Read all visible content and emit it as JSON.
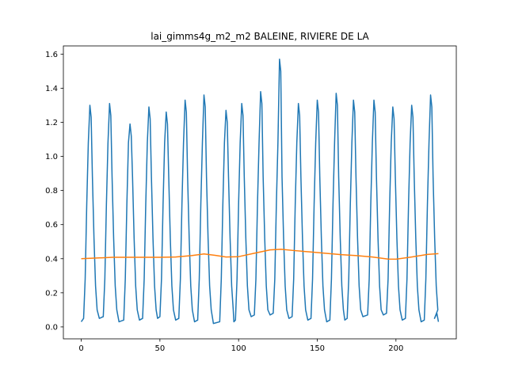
{
  "chart_data": {
    "type": "line",
    "title": "lai_gimms4g_m2_m2 BALEINE, RIVIERE DE LA",
    "xlabel": "",
    "ylabel": "",
    "xlim": [
      -11.35,
      238.35
    ],
    "ylim": [
      -0.07,
      1.648
    ],
    "xticks": [
      0,
      50,
      100,
      150,
      200
    ],
    "xtick_labels": [
      "0",
      "50",
      "100",
      "150",
      "200"
    ],
    "yticks": [
      0.0,
      0.2,
      0.4,
      0.6,
      0.8,
      1.0,
      1.2,
      1.4,
      1.6
    ],
    "ytick_labels": [
      "0.0",
      "0.2",
      "0.4",
      "0.6",
      "0.8",
      "1.0",
      "1.2",
      "1.4",
      "1.6"
    ],
    "grid": false,
    "legend": "none",
    "series": [
      {
        "color": "#1f77b4",
        "peaks": [
          {
            "x": 5.5,
            "y": 1.3
          },
          {
            "x": 18,
            "y": 1.31
          },
          {
            "x": 31,
            "y": 1.19
          },
          {
            "x": 43,
            "y": 1.29
          },
          {
            "x": 54,
            "y": 1.26
          },
          {
            "x": 66,
            "y": 1.33
          },
          {
            "x": 78,
            "y": 1.36
          },
          {
            "x": 92,
            "y": 1.27
          },
          {
            "x": 102,
            "y": 1.31
          },
          {
            "x": 114,
            "y": 1.38
          },
          {
            "x": 126,
            "y": 1.57
          },
          {
            "x": 138,
            "y": 1.31
          },
          {
            "x": 150,
            "y": 1.33
          },
          {
            "x": 162,
            "y": 1.37
          },
          {
            "x": 173,
            "y": 1.33
          },
          {
            "x": 186,
            "y": 1.33
          },
          {
            "x": 198,
            "y": 1.29
          },
          {
            "x": 210,
            "y": 1.3
          },
          {
            "x": 222,
            "y": 1.36
          }
        ],
        "baseline": [
          0.03,
          0.04,
          0.02,
          0.03,
          0.04,
          0.03,
          0.02,
          0.01,
          0.02,
          0.05,
          0.06,
          0.04,
          0.03,
          0.02,
          0.03,
          0.05,
          0.06,
          0.03,
          0.02,
          0.04,
          0.03
        ],
        "x_start": 0,
        "x_end": 227,
        "end_y": 0.03
      },
      {
        "color": "#ff7f0e",
        "x": [
          0,
          10,
          20,
          30,
          40,
          50,
          60,
          70,
          78,
          85,
          92,
          100,
          110,
          120,
          127,
          135,
          145,
          155,
          165,
          175,
          185,
          195,
          200,
          210,
          220,
          227
        ],
        "y": [
          0.4,
          0.404,
          0.408,
          0.408,
          0.408,
          0.408,
          0.41,
          0.418,
          0.428,
          0.42,
          0.41,
          0.412,
          0.432,
          0.452,
          0.455,
          0.448,
          0.44,
          0.432,
          0.424,
          0.418,
          0.41,
          0.398,
          0.397,
          0.41,
          0.425,
          0.43
        ]
      }
    ]
  }
}
